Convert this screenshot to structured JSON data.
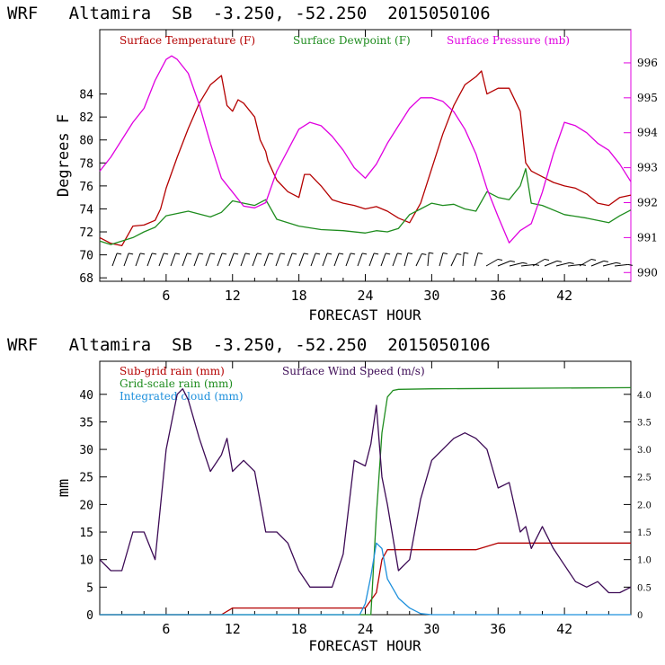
{
  "chart_data": [
    {
      "type": "line",
      "title": "WRF   Altamira  SB  -3.250, -52.250  2015050106",
      "xlabel": "FORECAST HOUR",
      "ylabel": "Degrees F",
      "xlim": [
        0,
        48
      ],
      "ylim": [
        67.7,
        89.6
      ],
      "y2lim": [
        989.75,
        996.95
      ],
      "xticks": [
        6,
        12,
        18,
        24,
        30,
        36,
        42
      ],
      "xtick_labels": [
        "6",
        "12",
        "18",
        "24",
        "30",
        "36",
        "42"
      ],
      "yticks": [
        68,
        70,
        72,
        74,
        76,
        78,
        80,
        82,
        84
      ],
      "ytick_labels": [
        "68",
        "70",
        "72",
        "74",
        "76",
        "78",
        "80",
        "82",
        "84"
      ],
      "y2ticks": [
        990,
        991,
        992,
        993,
        994,
        995,
        996
      ],
      "y2tick_labels": [
        "990",
        "991",
        "992",
        "993",
        "994",
        "995",
        "996"
      ],
      "legend": [
        "Surface Temperature (F)",
        "Surface Dewpoint (F)",
        "Surface Pressure (mb)"
      ],
      "series": [
        {
          "name": "Surface Temperature (F)",
          "color": "#b40000",
          "axis": "left",
          "x": [
            0,
            1,
            2,
            3,
            4,
            5,
            5.5,
            6,
            7,
            8,
            9,
            10,
            11,
            11.5,
            12,
            12.5,
            13,
            14,
            14.5,
            15,
            15.2,
            16,
            17,
            18,
            18.5,
            19,
            20,
            21,
            22,
            23,
            24,
            25,
            26,
            27,
            28,
            29,
            30,
            31,
            32,
            33,
            34,
            34.5,
            35,
            36,
            37,
            38,
            38.5,
            39,
            40,
            41,
            42,
            43,
            44,
            45,
            46,
            47,
            48
          ],
          "values": [
            71.5,
            71,
            70.8,
            72.5,
            72.6,
            73,
            74,
            75.8,
            78.5,
            81,
            83.2,
            84.8,
            85.6,
            83,
            82.5,
            83.5,
            83.2,
            82,
            80,
            79,
            78.2,
            76.5,
            75.5,
            75,
            77,
            77,
            76,
            74.8,
            74.5,
            74.3,
            74,
            74.2,
            73.8,
            73.2,
            72.8,
            74.5,
            77.5,
            80.5,
            83,
            84.8,
            85.5,
            86,
            84,
            84.5,
            84.5,
            82.5,
            78,
            77.3,
            76.8,
            76.3,
            76,
            75.8,
            75.3,
            74.5,
            74.3,
            75,
            75.2
          ]
        },
        {
          "name": "Surface Dewpoint (F)",
          "color": "#1e8c1e",
          "axis": "left",
          "x": [
            0,
            1,
            2,
            3,
            4,
            5,
            6,
            8,
            10,
            11,
            12,
            13,
            14,
            15,
            16,
            18,
            20,
            22,
            24,
            25,
            26,
            27,
            28,
            29,
            30,
            31,
            32,
            33,
            34,
            35,
            36,
            37,
            38,
            38.5,
            39,
            40,
            42,
            44,
            46,
            47,
            48
          ],
          "values": [
            71.2,
            70.9,
            71.2,
            71.5,
            72,
            72.4,
            73.4,
            73.8,
            73.3,
            73.7,
            74.7,
            74.5,
            74.3,
            74.8,
            73.1,
            72.5,
            72.2,
            72.1,
            71.9,
            72.1,
            72,
            72.3,
            73.5,
            74,
            74.5,
            74.3,
            74.4,
            74,
            73.8,
            75.5,
            75,
            74.8,
            76,
            77.5,
            74.5,
            74.3,
            73.5,
            73.2,
            72.8,
            73.4,
            73.9
          ]
        },
        {
          "name": "Surface Pressure (mb)",
          "color": "#e000e0",
          "axis": "right",
          "x": [
            0,
            1,
            2,
            3,
            4,
            5,
            6,
            6.5,
            7,
            8,
            9,
            10,
            11,
            12,
            13,
            14,
            15,
            16,
            17,
            18,
            19,
            20,
            21,
            22,
            23,
            24,
            25,
            26,
            27,
            28,
            29,
            30,
            31,
            32,
            33,
            34,
            35,
            36,
            37,
            38,
            39,
            40,
            41,
            42,
            43,
            44,
            45,
            46,
            47,
            48
          ],
          "values": [
            992.9,
            993.3,
            993.8,
            994.3,
            994.7,
            995.5,
            996.1,
            996.2,
            996.1,
            995.7,
            994.8,
            993.7,
            992.7,
            992.3,
            991.9,
            991.85,
            992,
            992.9,
            993.5,
            994.1,
            994.3,
            994.2,
            993.9,
            993.5,
            993,
            992.7,
            993.1,
            993.7,
            994.2,
            994.7,
            995,
            995,
            994.9,
            994.6,
            994.1,
            993.4,
            992.4,
            991.6,
            990.85,
            991.2,
            991.4,
            992.3,
            993.4,
            994.3,
            994.2,
            994,
            993.7,
            993.5,
            993.1,
            992.6
          ]
        }
      ],
      "wind_barbs": "row of wind barbs along the bottom of the panel"
    },
    {
      "type": "line",
      "title": "WRF   Altamira  SB  -3.250, -52.250  2015050106",
      "xlabel": "FORECAST HOUR",
      "ylabel": "mm",
      "xlim": [
        0,
        48
      ],
      "ylim": [
        0,
        46
      ],
      "y2lim": [
        0,
        4.6
      ],
      "xticks": [
        6,
        12,
        18,
        24,
        30,
        36,
        42
      ],
      "xtick_labels": [
        "6",
        "12",
        "18",
        "24",
        "30",
        "36",
        "42"
      ],
      "yticks": [
        0,
        5,
        10,
        15,
        20,
        25,
        30,
        35,
        40
      ],
      "ytick_labels": [
        "0",
        "5",
        "10",
        "15",
        "20",
        "25",
        "30",
        "35",
        "40"
      ],
      "y2ticks": [
        0,
        0.5,
        1,
        1.5,
        2,
        2.5,
        3,
        3.5,
        4
      ],
      "y2tick_labels": [
        "0",
        "0.5",
        "1.0",
        "1.5",
        "2.0",
        "2.5",
        "3.0",
        "3.5",
        "4.0"
      ],
      "legend": [
        "Sub-grid rain (mm)",
        "Grid-scale rain (mm)",
        "Integrated cloud (mm)",
        "Surface Wind Speed (m/s)"
      ],
      "series": [
        {
          "name": "Sub-grid rain (mm)",
          "color": "#b40000",
          "axis": "left",
          "x": [
            0,
            11,
            12,
            24,
            25,
            25.5,
            26,
            34,
            36,
            48
          ],
          "values": [
            0,
            0,
            1.2,
            1.2,
            4,
            10,
            11.8,
            11.8,
            13,
            13
          ]
        },
        {
          "name": "Grid-scale rain (mm)",
          "color": "#1e8c1e",
          "axis": "left",
          "x": [
            0,
            24.5,
            25,
            25.5,
            26,
            26.5,
            27,
            30,
            48
          ],
          "values": [
            0,
            0,
            18,
            33,
            39.5,
            40.7,
            40.9,
            41,
            41.2
          ]
        },
        {
          "name": "Integrated cloud (mm)",
          "color": "#1e90dc",
          "axis": "left",
          "x": [
            0,
            23.5,
            24,
            24.5,
            25,
            25.5,
            26,
            27,
            28,
            29,
            30,
            48
          ],
          "values": [
            0,
            0,
            2,
            7,
            13,
            12,
            6.5,
            3,
            1.2,
            0.2,
            0,
            0
          ]
        },
        {
          "name": "Surface Wind Speed (m/s)",
          "color": "#3c0a55",
          "axis": "right",
          "x": [
            0,
            1,
            2,
            3,
            4,
            5,
            6,
            7,
            7.5,
            8,
            9,
            10,
            11,
            11.5,
            12,
            13,
            14,
            15,
            16,
            17,
            18,
            19,
            20,
            21,
            22,
            23,
            24,
            24.5,
            25,
            25.5,
            26,
            27,
            28,
            29,
            30,
            31,
            32,
            33,
            34,
            35,
            36,
            37,
            38,
            38.5,
            39,
            40,
            41,
            42,
            43,
            44,
            45,
            46,
            47,
            48
          ],
          "values": [
            1.0,
            0.8,
            0.8,
            1.5,
            1.5,
            1.0,
            3.0,
            4.0,
            4.1,
            3.9,
            3.2,
            2.6,
            2.9,
            3.2,
            2.6,
            2.8,
            2.6,
            1.5,
            1.5,
            1.3,
            0.8,
            0.5,
            0.5,
            0.5,
            1.1,
            2.8,
            2.7,
            3.1,
            3.8,
            2.5,
            2.0,
            0.8,
            1.0,
            2.1,
            2.8,
            3.0,
            3.2,
            3.3,
            3.2,
            3.0,
            2.3,
            2.4,
            1.5,
            1.6,
            1.2,
            1.6,
            1.2,
            0.9,
            0.6,
            0.5,
            0.6,
            0.4,
            0.4,
            0.5
          ]
        }
      ]
    }
  ]
}
